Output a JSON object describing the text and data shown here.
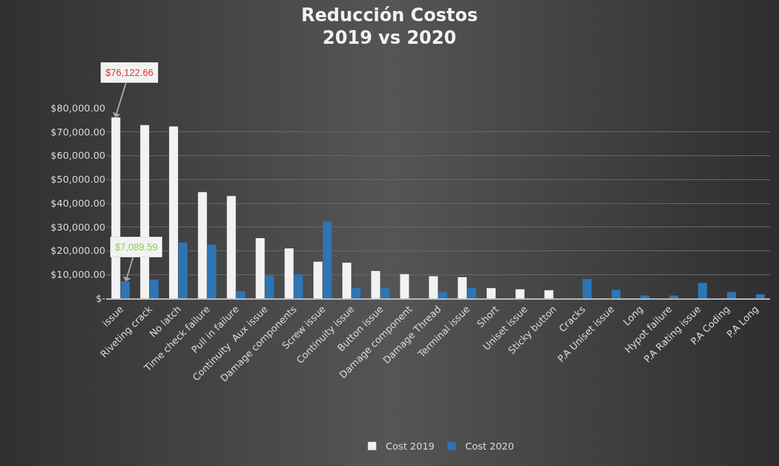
{
  "chart_data": {
    "type": "bar",
    "title": "Reducción Costos\n2019 vs 2020",
    "categories": [
      "issue",
      "Riveting crack",
      "No latch",
      "Time check failure",
      "Pull in failure",
      "Continuity  Aux issue",
      "Damage components",
      "Screw issue",
      "Continuity issue",
      "Button issue",
      "Damage component",
      "Damage Thread",
      "Terminal issue",
      "Short",
      "Uniset issue",
      "Sticky button",
      "Cracks",
      "P.A Uniset issue",
      "Long",
      "Hypot failure",
      "P.A Rating issue",
      "P.A Coding",
      "P.A Long"
    ],
    "series": [
      {
        "name": "Cost 2019",
        "color": "#f2f2f2",
        "values": [
          76122.66,
          72900,
          72300,
          44700,
          43000,
          25300,
          21000,
          15400,
          15000,
          11500,
          10200,
          9300,
          8900,
          4300,
          3800,
          3400,
          null,
          null,
          null,
          null,
          null,
          null,
          null
        ],
        "value_labels": [
          "$76,122.66",
          null,
          null,
          null,
          null,
          null,
          null,
          null,
          null,
          null,
          null,
          null,
          null,
          null,
          null,
          null,
          null,
          null,
          null,
          null,
          null,
          null,
          null
        ]
      },
      {
        "name": "Cost 2020",
        "color": "#2e75b6",
        "values": [
          7089.59,
          7900,
          23500,
          22600,
          3000,
          9600,
          10000,
          32400,
          4400,
          4400,
          null,
          2700,
          4400,
          null,
          null,
          null,
          8200,
          3600,
          1200,
          1200,
          6500,
          2700,
          1700
        ],
        "value_labels": [
          "$7,089.59",
          null,
          null,
          null,
          null,
          null,
          null,
          null,
          null,
          null,
          null,
          null,
          null,
          null,
          null,
          null,
          null,
          null,
          null,
          null,
          null,
          null,
          null
        ]
      }
    ],
    "ylim": [
      0,
      80000
    ],
    "yticks": [
      {
        "value": 0,
        "label": "$-"
      },
      {
        "value": 10000,
        "label": "$10,000.00"
      },
      {
        "value": 20000,
        "label": "$20,000.00"
      },
      {
        "value": 30000,
        "label": "$30,000.00"
      },
      {
        "value": 40000,
        "label": "$40,000.00"
      },
      {
        "value": 50000,
        "label": "$50,000.00"
      },
      {
        "value": 60000,
        "label": "$60,000.00"
      },
      {
        "value": 70000,
        "label": "$70,000.00"
      },
      {
        "value": 80000,
        "label": "$80,000.00"
      }
    ],
    "grid": "y",
    "legend": "bottom"
  }
}
